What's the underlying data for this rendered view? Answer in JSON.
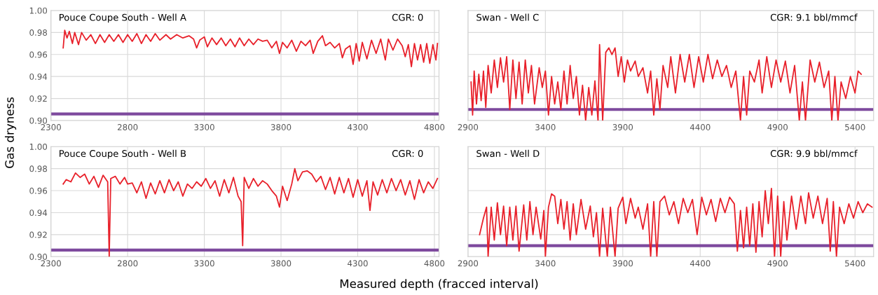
{
  "chart_data": [
    {
      "type": "line",
      "annotations": [
        "Pouce Coupe South - Well A",
        "CGR: 0"
      ],
      "ylabel": "Gas dryness",
      "xlim": [
        2300,
        4830
      ],
      "xticks": [
        2300,
        2800,
        3300,
        3800,
        4300,
        4800
      ],
      "ylim": [
        0.9,
        1.0
      ],
      "yticks": [
        {
          "value": 0.9,
          "label": "0.90"
        },
        {
          "value": 0.92,
          "label": "0.92"
        },
        {
          "value": 0.94,
          "label": "0.94"
        },
        {
          "value": 0.96,
          "label": "0.96"
        },
        {
          "value": 0.98,
          "label": "0.98"
        },
        {
          "value": 1.0,
          "label": "1.00"
        }
      ],
      "grid": true,
      "ref_lines": [
        {
          "axis": "y",
          "value": 0.906,
          "color": "#7e4a9e"
        }
      ],
      "series": [
        {
          "color": "#e8202a",
          "x": [
            2380,
            2390,
            2405,
            2420,
            2440,
            2455,
            2480,
            2500,
            2530,
            2560,
            2590,
            2620,
            2650,
            2680,
            2710,
            2740,
            2770,
            2800,
            2830,
            2860,
            2890,
            2920,
            2950,
            2980,
            3010,
            3050,
            3080,
            3120,
            3160,
            3200,
            3230,
            3250,
            3270,
            3300,
            3320,
            3350,
            3380,
            3410,
            3440,
            3470,
            3500,
            3530,
            3560,
            3590,
            3620,
            3650,
            3680,
            3710,
            3740,
            3770,
            3790,
            3810,
            3840,
            3870,
            3900,
            3930,
            3960,
            3990,
            4010,
            4040,
            4070,
            4090,
            4120,
            4150,
            4180,
            4200,
            4220,
            4250,
            4270,
            4290,
            4310,
            4330,
            4360,
            4390,
            4420,
            4450,
            4480,
            4500,
            4530,
            4560,
            4590,
            4610,
            4630,
            4650,
            4670,
            4690,
            4710,
            4730,
            4750,
            4770,
            4790,
            4810,
            4820
          ],
          "values": [
            0.966,
            0.982,
            0.975,
            0.981,
            0.97,
            0.98,
            0.969,
            0.98,
            0.973,
            0.978,
            0.97,
            0.978,
            0.971,
            0.978,
            0.972,
            0.978,
            0.971,
            0.978,
            0.972,
            0.979,
            0.97,
            0.978,
            0.972,
            0.979,
            0.973,
            0.978,
            0.974,
            0.978,
            0.975,
            0.977,
            0.974,
            0.966,
            0.973,
            0.976,
            0.967,
            0.975,
            0.969,
            0.975,
            0.968,
            0.974,
            0.967,
            0.975,
            0.968,
            0.974,
            0.969,
            0.974,
            0.972,
            0.973,
            0.966,
            0.972,
            0.961,
            0.971,
            0.966,
            0.973,
            0.963,
            0.972,
            0.968,
            0.973,
            0.961,
            0.972,
            0.977,
            0.968,
            0.971,
            0.966,
            0.97,
            0.957,
            0.965,
            0.968,
            0.951,
            0.97,
            0.954,
            0.971,
            0.956,
            0.973,
            0.961,
            0.974,
            0.955,
            0.974,
            0.964,
            0.974,
            0.968,
            0.958,
            0.969,
            0.949,
            0.97,
            0.955,
            0.969,
            0.953,
            0.97,
            0.952,
            0.969,
            0.955,
            0.97
          ]
        }
      ]
    },
    {
      "type": "line",
      "annotations": [
        "Swan - Well C",
        "CGR: 9.1 bbl/mmcf"
      ],
      "xlim": [
        2900,
        5520
      ],
      "xticks": [
        2900,
        3400,
        3900,
        4400,
        4900,
        5400
      ],
      "ylim": [
        0.9,
        1.0
      ],
      "yticks": [
        {
          "value": 0.9,
          "label": null
        },
        {
          "value": 0.92,
          "label": null
        },
        {
          "value": 0.94,
          "label": null
        },
        {
          "value": 0.96,
          "label": null
        },
        {
          "value": 0.98,
          "label": null
        },
        {
          "value": 1.0,
          "label": null
        }
      ],
      "tick_labels": "x",
      "grid": true,
      "ref_lines": [
        {
          "axis": "y",
          "value": 0.91,
          "color": "#7e4a9e"
        }
      ],
      "series": [
        {
          "color": "#e8202a",
          "x": [
            2920,
            2930,
            2940,
            2955,
            2970,
            2985,
            3000,
            3015,
            3030,
            3050,
            3070,
            3090,
            3110,
            3130,
            3150,
            3170,
            3190,
            3210,
            3230,
            3250,
            3270,
            3290,
            3310,
            3330,
            3360,
            3380,
            3400,
            3420,
            3440,
            3460,
            3480,
            3500,
            3520,
            3540,
            3560,
            3580,
            3600,
            3620,
            3640,
            3660,
            3680,
            3700,
            3720,
            3740,
            3750,
            3760,
            3770,
            3790,
            3810,
            3830,
            3850,
            3870,
            3890,
            3910,
            3930,
            3950,
            3980,
            4000,
            4030,
            4060,
            4080,
            4100,
            4120,
            4140,
            4160,
            4190,
            4210,
            4240,
            4270,
            4300,
            4330,
            4360,
            4390,
            4420,
            4450,
            4480,
            4510,
            4540,
            4570,
            4600,
            4630,
            4660,
            4680,
            4700,
            4720,
            4750,
            4780,
            4800,
            4830,
            4860,
            4890,
            4920,
            4950,
            4980,
            5010,
            5040,
            5060,
            5080,
            5110,
            5140,
            5170,
            5200,
            5230,
            5250,
            5270,
            5290,
            5310,
            5340,
            5370,
            5400,
            5420,
            5440
          ],
          "values": [
            0.935,
            0.905,
            0.945,
            0.915,
            0.942,
            0.918,
            0.945,
            0.912,
            0.95,
            0.925,
            0.955,
            0.93,
            0.957,
            0.935,
            0.958,
            0.91,
            0.955,
            0.92,
            0.953,
            0.915,
            0.955,
            0.925,
            0.95,
            0.915,
            0.948,
            0.93,
            0.945,
            0.905,
            0.94,
            0.915,
            0.935,
            0.91,
            0.945,
            0.915,
            0.95,
            0.92,
            0.94,
            0.905,
            0.932,
            0.9,
            0.93,
            0.905,
            0.936,
            0.9,
            0.969,
            0.935,
            0.9,
            0.962,
            0.966,
            0.96,
            0.966,
            0.94,
            0.958,
            0.935,
            0.955,
            0.945,
            0.954,
            0.94,
            0.948,
            0.925,
            0.945,
            0.905,
            0.938,
            0.91,
            0.95,
            0.93,
            0.958,
            0.925,
            0.96,
            0.935,
            0.96,
            0.93,
            0.958,
            0.935,
            0.96,
            0.938,
            0.955,
            0.94,
            0.95,
            0.93,
            0.945,
            0.9,
            0.94,
            0.905,
            0.945,
            0.935,
            0.955,
            0.925,
            0.958,
            0.93,
            0.955,
            0.935,
            0.954,
            0.925,
            0.95,
            0.9,
            0.935,
            0.9,
            0.955,
            0.935,
            0.953,
            0.93,
            0.945,
            0.9,
            0.94,
            0.9,
            0.935,
            0.92,
            0.94,
            0.925,
            0.945,
            0.942
          ]
        }
      ]
    },
    {
      "type": "line",
      "annotations": [
        "Pouce Coupe South - Well B",
        "CGR: 0"
      ],
      "xlabel": "Measured depth (fracced interval)",
      "xlim": [
        2300,
        4830
      ],
      "xticks": [
        2300,
        2800,
        3300,
        3800,
        4300,
        4800
      ],
      "ylim": [
        0.9,
        1.0
      ],
      "yticks": [
        {
          "value": 0.9,
          "label": "0.90"
        },
        {
          "value": 0.92,
          "label": "0.92"
        },
        {
          "value": 0.94,
          "label": "0.94"
        },
        {
          "value": 0.96,
          "label": "0.96"
        },
        {
          "value": 0.98,
          "label": "0.98"
        },
        {
          "value": 1.0,
          "label": "1.00"
        }
      ],
      "grid": true,
      "ref_lines": [
        {
          "axis": "y",
          "value": 0.906,
          "color": "#7e4a9e"
        }
      ],
      "series": [
        {
          "color": "#e8202a",
          "x": [
            2380,
            2400,
            2430,
            2460,
            2490,
            2520,
            2550,
            2580,
            2610,
            2640,
            2670,
            2680,
            2690,
            2720,
            2750,
            2780,
            2800,
            2830,
            2860,
            2890,
            2920,
            2950,
            2980,
            3010,
            3040,
            3070,
            3100,
            3130,
            3160,
            3190,
            3220,
            3250,
            3280,
            3310,
            3340,
            3370,
            3400,
            3430,
            3460,
            3490,
            3520,
            3540,
            3550,
            3560,
            3590,
            3620,
            3650,
            3680,
            3710,
            3740,
            3770,
            3790,
            3810,
            3840,
            3870,
            3890,
            3910,
            3940,
            3970,
            4000,
            4030,
            4060,
            4090,
            4120,
            4150,
            4180,
            4210,
            4240,
            4270,
            4300,
            4330,
            4360,
            4380,
            4400,
            4430,
            4460,
            4490,
            4520,
            4550,
            4580,
            4610,
            4640,
            4670,
            4700,
            4730,
            4760,
            4790,
            4820
          ],
          "values": [
            0.966,
            0.97,
            0.968,
            0.976,
            0.972,
            0.975,
            0.966,
            0.973,
            0.963,
            0.974,
            0.968,
            0.9,
            0.971,
            0.973,
            0.966,
            0.972,
            0.966,
            0.967,
            0.958,
            0.968,
            0.953,
            0.967,
            0.957,
            0.969,
            0.958,
            0.97,
            0.96,
            0.968,
            0.955,
            0.966,
            0.962,
            0.968,
            0.964,
            0.971,
            0.962,
            0.969,
            0.955,
            0.97,
            0.958,
            0.972,
            0.955,
            0.95,
            0.91,
            0.972,
            0.962,
            0.971,
            0.964,
            0.969,
            0.966,
            0.96,
            0.955,
            0.945,
            0.964,
            0.951,
            0.966,
            0.98,
            0.969,
            0.977,
            0.978,
            0.975,
            0.968,
            0.973,
            0.961,
            0.972,
            0.957,
            0.972,
            0.958,
            0.971,
            0.954,
            0.97,
            0.955,
            0.969,
            0.942,
            0.968,
            0.956,
            0.97,
            0.958,
            0.971,
            0.96,
            0.97,
            0.956,
            0.969,
            0.952,
            0.97,
            0.958,
            0.968,
            0.962,
            0.971
          ]
        }
      ]
    },
    {
      "type": "line",
      "annotations": [
        "Swan - Well D",
        "CGR: 9.9 bbl/mmcf"
      ],
      "xlim": [
        2900,
        5520
      ],
      "xticks": [
        2900,
        3400,
        3900,
        4400,
        4900,
        5400
      ],
      "ylim": [
        0.9,
        1.0
      ],
      "yticks": [
        {
          "value": 0.9,
          "label": null
        },
        {
          "value": 0.92,
          "label": null
        },
        {
          "value": 0.94,
          "label": null
        },
        {
          "value": 0.96,
          "label": null
        },
        {
          "value": 0.98,
          "label": null
        },
        {
          "value": 1.0,
          "label": null
        }
      ],
      "tick_labels": "x",
      "grid": true,
      "ref_lines": [
        {
          "axis": "y",
          "value": 0.91,
          "color": "#7e4a9e"
        }
      ],
      "series": [
        {
          "color": "#e8202a",
          "x": [
            2975,
            3000,
            3020,
            3030,
            3050,
            3070,
            3090,
            3110,
            3130,
            3150,
            3170,
            3190,
            3210,
            3230,
            3260,
            3280,
            3300,
            3320,
            3340,
            3370,
            3390,
            3400,
            3420,
            3440,
            3460,
            3480,
            3500,
            3520,
            3540,
            3560,
            3580,
            3600,
            3630,
            3660,
            3690,
            3710,
            3730,
            3750,
            3770,
            3800,
            3820,
            3850,
            3870,
            3900,
            3920,
            3950,
            3980,
            4000,
            4030,
            4060,
            4080,
            4100,
            4120,
            4140,
            4170,
            4200,
            4230,
            4260,
            4290,
            4320,
            4350,
            4380,
            4410,
            4440,
            4470,
            4500,
            4530,
            4560,
            4590,
            4620,
            4640,
            4660,
            4680,
            4700,
            4720,
            4740,
            4760,
            4780,
            4800,
            4820,
            4840,
            4860,
            4880,
            4900,
            4920,
            4940,
            4960,
            4990,
            5020,
            5050,
            5080,
            5100,
            5130,
            5160,
            5190,
            5220,
            5240,
            5260,
            5280,
            5300,
            5330,
            5360,
            5390,
            5420,
            5450,
            5480,
            5510
          ],
          "values": [
            0.92,
            0.935,
            0.945,
            0.9,
            0.945,
            0.915,
            0.949,
            0.92,
            0.946,
            0.91,
            0.945,
            0.915,
            0.946,
            0.905,
            0.947,
            0.915,
            0.95,
            0.92,
            0.945,
            0.916,
            0.942,
            0.9,
            0.945,
            0.957,
            0.955,
            0.93,
            0.952,
            0.925,
            0.95,
            0.915,
            0.948,
            0.92,
            0.952,
            0.925,
            0.946,
            0.918,
            0.94,
            0.9,
            0.944,
            0.9,
            0.945,
            0.9,
            0.944,
            0.954,
            0.93,
            0.953,
            0.935,
            0.945,
            0.925,
            0.948,
            0.9,
            0.95,
            0.9,
            0.95,
            0.955,
            0.938,
            0.95,
            0.93,
            0.953,
            0.94,
            0.952,
            0.92,
            0.954,
            0.938,
            0.952,
            0.932,
            0.953,
            0.94,
            0.954,
            0.948,
            0.905,
            0.942,
            0.908,
            0.945,
            0.91,
            0.948,
            0.904,
            0.95,
            0.918,
            0.96,
            0.93,
            0.962,
            0.9,
            0.955,
            0.9,
            0.95,
            0.915,
            0.955,
            0.925,
            0.955,
            0.93,
            0.958,
            0.935,
            0.955,
            0.93,
            0.953,
            0.905,
            0.95,
            0.9,
            0.945,
            0.93,
            0.948,
            0.935,
            0.95,
            0.94,
            0.948,
            0.945
          ]
        }
      ]
    }
  ]
}
